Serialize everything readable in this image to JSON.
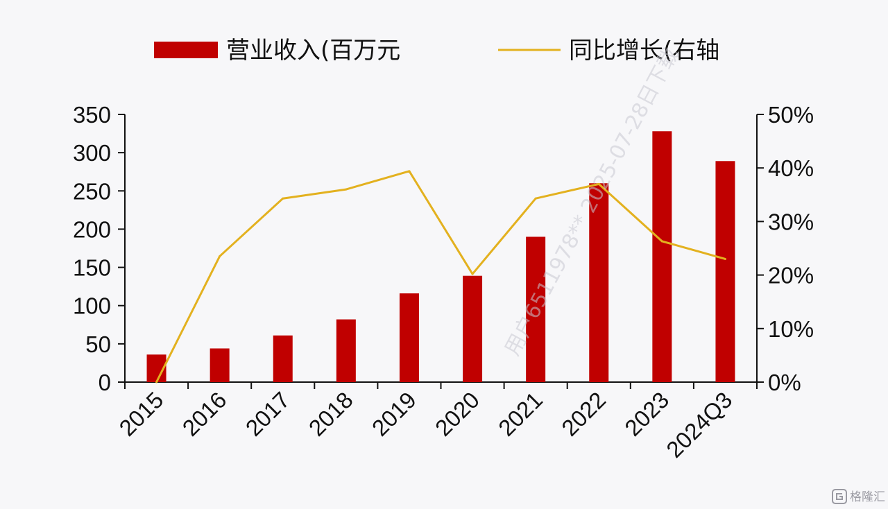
{
  "chart_data": {
    "type": "bar",
    "title": "",
    "xlabel": "",
    "ylabel": "",
    "categories": [
      "2015",
      "2016",
      "2017",
      "2018",
      "2019",
      "2020",
      "2021",
      "2022",
      "2023",
      "2024Q3"
    ],
    "series": [
      {
        "name": "营业收入(百万元",
        "type": "bar",
        "axis": "left",
        "color": "#c00000",
        "values": [
          36,
          44,
          61,
          82,
          116,
          139,
          190,
          260,
          328,
          289
        ]
      },
      {
        "name": "同比增长(右轴",
        "type": "line",
        "axis": "right",
        "color": "#e3b11f",
        "values": [
          0,
          23.5,
          34.3,
          36.0,
          39.4,
          20.2,
          34.3,
          37.0,
          26.3,
          23.0
        ]
      }
    ],
    "ylim": [
      0,
      350
    ],
    "yticks": [
      "0",
      "50",
      "100",
      "150",
      "200",
      "250",
      "300",
      "350"
    ],
    "ylim_right": [
      0,
      50
    ],
    "yticks_right": [
      "0%",
      "10%",
      "20%",
      "30%",
      "40%",
      "50%"
    ],
    "legend_position": "top",
    "grid": false
  },
  "watermark": {
    "text": "用户6511978**    2025-07-28日下载"
  },
  "brand": {
    "icon": "brand-logo-icon",
    "text": "格隆汇"
  }
}
